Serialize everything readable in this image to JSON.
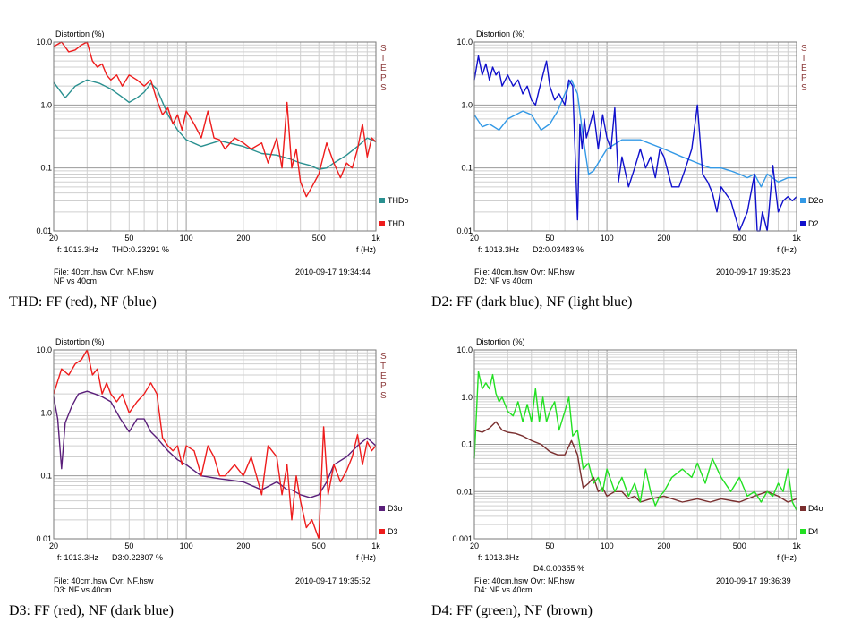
{
  "panels": [
    {
      "ylabel": "Distortion (%)",
      "xlabel": "f (Hz)",
      "steps_label": [
        "S",
        "T",
        "E",
        "P",
        "S"
      ],
      "yticks": [
        "10.0",
        "1.0",
        "0.1",
        "0.01"
      ],
      "xticks": [
        "20",
        "50",
        "100",
        "200",
        "500",
        "1k"
      ],
      "cursor_freq": "f: 1013.3Hz",
      "cursor_value": "THD:0.23291  %",
      "file_line": "File: 40cm.hsw   Ovr: NF.hsw",
      "sub_line": "NF vs 40cm",
      "date_line": "2010-09-17 19:34:44",
      "caption": "THD: FF (red), NF (blue)"
    },
    {
      "ylabel": "Distortion (%)",
      "xlabel": "f (Hz)",
      "steps_label": [
        "S",
        "T",
        "E",
        "P",
        "S"
      ],
      "yticks": [
        "10.0",
        "1.0",
        "0.1",
        "0.01"
      ],
      "xticks": [
        "20",
        "50",
        "100",
        "200",
        "500",
        "1k"
      ],
      "cursor_freq": "f: 1013.3Hz",
      "cursor_value": "D2:0.03483  %",
      "file_line": "File: 40cm.hsw   Ovr: NF.hsw",
      "sub_line": "D2: NF vs 40cm",
      "date_line": "2010-09-17 19:35:23",
      "caption": "D2: FF (dark blue), NF (light blue)"
    },
    {
      "ylabel": "Distortion (%)",
      "xlabel": "f (Hz)",
      "steps_label": [
        "S",
        "T",
        "E",
        "P",
        "S"
      ],
      "yticks": [
        "10.0",
        "1.0",
        "0.1",
        "0.01"
      ],
      "xticks": [
        "20",
        "50",
        "100",
        "200",
        "500",
        "1k"
      ],
      "cursor_freq": "f: 1013.3Hz",
      "cursor_value": "D3:0.22807 %",
      "file_line": "File: 40cm.hsw   Ovr: NF.hsw",
      "sub_line": "D3: NF vs 40cm",
      "date_line": "2010-09-17 19:35:52",
      "caption": "D3: FF (red), NF (dark blue)"
    },
    {
      "ylabel": "Distortion (%)",
      "xlabel": "f (Hz)",
      "steps_label": [],
      "yticks": [
        "10.0",
        "1.0",
        "0.1",
        "0.01",
        "0.001"
      ],
      "xticks": [
        "20",
        "50",
        "100",
        "200",
        "500",
        "1k"
      ],
      "cursor_freq": "f: 1013.3Hz",
      "cursor_value": "D4:0.00355   %",
      "file_line": "File: 40cm.hsw   Ovr: NF.hsw",
      "sub_line": "D4: NF vs 40cm",
      "date_line": "2010-09-17 19:36:39",
      "caption": "D4: FF (green), NF (brown)"
    }
  ],
  "chart_data": [
    {
      "type": "line",
      "ylabel": "Distortion (%)",
      "xlabel": "f (Hz)",
      "xscale": "log",
      "yscale": "log",
      "xlim": [
        20,
        1000
      ],
      "ylim": [
        0.01,
        10
      ],
      "legend": "bottom-right",
      "series": [
        {
          "name": "THDo",
          "color": "#2a9090",
          "x": [
            20,
            23,
            26,
            30,
            35,
            40,
            45,
            50,
            55,
            60,
            65,
            70,
            80,
            90,
            100,
            120,
            150,
            200,
            250,
            300,
            350,
            400,
            450,
            500,
            550,
            600,
            700,
            800,
            900,
            1000
          ],
          "y": [
            2.3,
            1.3,
            2.0,
            2.5,
            2.2,
            1.8,
            1.4,
            1.1,
            1.3,
            1.6,
            2.2,
            1.8,
            0.7,
            0.4,
            0.28,
            0.22,
            0.27,
            0.22,
            0.17,
            0.16,
            0.14,
            0.12,
            0.11,
            0.095,
            0.1,
            0.12,
            0.16,
            0.22,
            0.3,
            0.26
          ]
        },
        {
          "name": "THD",
          "color": "#ee1c1c",
          "x": [
            20,
            22,
            24,
            26,
            28,
            30,
            32,
            34,
            36,
            38,
            40,
            43,
            46,
            50,
            55,
            60,
            65,
            70,
            75,
            80,
            85,
            90,
            95,
            100,
            110,
            120,
            130,
            140,
            150,
            160,
            180,
            200,
            220,
            250,
            270,
            300,
            320,
            340,
            360,
            380,
            400,
            430,
            460,
            500,
            550,
            600,
            650,
            700,
            750,
            800,
            850,
            900,
            950,
            1000
          ],
          "y": [
            8.5,
            10,
            7,
            7.5,
            9,
            10,
            5,
            4,
            4.5,
            3,
            2.5,
            3,
            2,
            3,
            2.5,
            2,
            2.5,
            1.2,
            0.7,
            0.9,
            0.5,
            0.7,
            0.4,
            0.8,
            0.5,
            0.3,
            0.8,
            0.3,
            0.28,
            0.2,
            0.3,
            0.25,
            0.2,
            0.25,
            0.12,
            0.3,
            0.1,
            1.1,
            0.1,
            0.2,
            0.06,
            0.035,
            0.05,
            0.08,
            0.25,
            0.12,
            0.07,
            0.12,
            0.1,
            0.2,
            0.5,
            0.15,
            0.3,
            0.26
          ]
        }
      ]
    },
    {
      "type": "line",
      "ylabel": "Distortion (%)",
      "xlabel": "f (Hz)",
      "xscale": "log",
      "yscale": "log",
      "xlim": [
        20,
        1000
      ],
      "ylim": [
        0.01,
        10
      ],
      "legend": "bottom-right",
      "series": [
        {
          "name": "D2o",
          "color": "#3399e6",
          "x": [
            20,
            22,
            24,
            27,
            30,
            33,
            36,
            40,
            45,
            50,
            55,
            60,
            65,
            70,
            75,
            80,
            85,
            90,
            100,
            120,
            150,
            200,
            250,
            300,
            350,
            400,
            450,
            500,
            550,
            600,
            650,
            700,
            800,
            900,
            1000
          ],
          "y": [
            0.7,
            0.45,
            0.5,
            0.4,
            0.6,
            0.7,
            0.8,
            0.7,
            0.4,
            0.5,
            0.8,
            1.5,
            2.5,
            1.5,
            0.3,
            0.08,
            0.09,
            0.12,
            0.2,
            0.28,
            0.28,
            0.2,
            0.15,
            0.12,
            0.1,
            0.1,
            0.09,
            0.08,
            0.07,
            0.08,
            0.05,
            0.08,
            0.06,
            0.07,
            0.07
          ]
        },
        {
          "name": "D2",
          "color": "#1010cc",
          "x": [
            20,
            21,
            22,
            23,
            24,
            25,
            26,
            27,
            28,
            30,
            32,
            34,
            36,
            38,
            40,
            42,
            44,
            46,
            48,
            50,
            53,
            56,
            60,
            63,
            66,
            70,
            72,
            74,
            76,
            78,
            80,
            85,
            90,
            95,
            100,
            105,
            110,
            115,
            120,
            130,
            140,
            150,
            160,
            170,
            180,
            190,
            200,
            220,
            240,
            260,
            280,
            300,
            320,
            340,
            360,
            380,
            400,
            450,
            500,
            550,
            600,
            620,
            640,
            660,
            700,
            750,
            800,
            850,
            900,
            950,
            1000
          ],
          "y": [
            2.5,
            6,
            3,
            4.5,
            2.5,
            4,
            3,
            3.5,
            2,
            3,
            2,
            2.5,
            1.5,
            2,
            1.2,
            1,
            1.8,
            3,
            5,
            2,
            1.2,
            1.5,
            1,
            2.5,
            2,
            0.015,
            0.5,
            0.2,
            0.6,
            0.3,
            0.4,
            0.8,
            0.2,
            0.7,
            0.3,
            0.2,
            0.9,
            0.06,
            0.15,
            0.05,
            0.1,
            0.2,
            0.1,
            0.15,
            0.07,
            0.2,
            0.15,
            0.05,
            0.05,
            0.1,
            0.2,
            1,
            0.08,
            0.06,
            0.04,
            0.02,
            0.05,
            0.03,
            0.01,
            0.02,
            0.08,
            0.01,
            0.005,
            0.02,
            0.01,
            0.11,
            0.02,
            0.03,
            0.035,
            0.03,
            0.035
          ]
        }
      ]
    },
    {
      "type": "line",
      "ylabel": "Distortion (%)",
      "xlabel": "f (Hz)",
      "xscale": "log",
      "yscale": "log",
      "xlim": [
        20,
        1000
      ],
      "ylim": [
        0.01,
        10
      ],
      "legend": "bottom-right",
      "series": [
        {
          "name": "D3o",
          "color": "#5a1f7a",
          "x": [
            20,
            21,
            22,
            23,
            25,
            27,
            30,
            33,
            36,
            40,
            45,
            50,
            55,
            60,
            65,
            70,
            80,
            90,
            100,
            120,
            150,
            200,
            250,
            300,
            320,
            340,
            360,
            400,
            450,
            500,
            550,
            600,
            700,
            800,
            900,
            1000
          ],
          "y": [
            1.8,
            0.8,
            0.13,
            0.7,
            1.3,
            2.0,
            2.2,
            2.0,
            1.8,
            1.5,
            0.8,
            0.5,
            0.8,
            0.8,
            0.5,
            0.4,
            0.25,
            0.18,
            0.15,
            0.1,
            0.09,
            0.08,
            0.06,
            0.08,
            0.07,
            0.06,
            0.06,
            0.05,
            0.045,
            0.05,
            0.08,
            0.15,
            0.2,
            0.3,
            0.4,
            0.3
          ]
        },
        {
          "name": "D3",
          "color": "#ee1c1c",
          "x": [
            20,
            22,
            24,
            26,
            28,
            30,
            32,
            34,
            36,
            38,
            40,
            43,
            46,
            50,
            55,
            60,
            65,
            70,
            75,
            80,
            85,
            90,
            95,
            100,
            110,
            120,
            130,
            140,
            150,
            160,
            180,
            200,
            220,
            250,
            270,
            300,
            320,
            340,
            360,
            380,
            400,
            430,
            460,
            500,
            530,
            560,
            600,
            650,
            700,
            750,
            800,
            850,
            900,
            950,
            1000
          ],
          "y": [
            2,
            5,
            4,
            6,
            7,
            10,
            4,
            5,
            2,
            3,
            2,
            1.5,
            2,
            1,
            1.5,
            2,
            3,
            2,
            0.4,
            0.3,
            0.25,
            0.3,
            0.15,
            0.3,
            0.25,
            0.1,
            0.3,
            0.2,
            0.1,
            0.1,
            0.15,
            0.1,
            0.2,
            0.05,
            0.3,
            0.2,
            0.05,
            0.15,
            0.02,
            0.1,
            0.04,
            0.015,
            0.02,
            0.01,
            0.6,
            0.05,
            0.15,
            0.08,
            0.12,
            0.2,
            0.45,
            0.15,
            0.35,
            0.25,
            0.3
          ]
        }
      ]
    },
    {
      "type": "line",
      "ylabel": "Distortion (%)",
      "xlabel": "f (Hz)",
      "xscale": "log",
      "yscale": "log",
      "xlim": [
        20,
        1000
      ],
      "ylim": [
        0.001,
        10
      ],
      "legend": "bottom-right",
      "series": [
        {
          "name": "D4o",
          "color": "#7a2f2f",
          "x": [
            20,
            22,
            24,
            26,
            28,
            30,
            33,
            36,
            40,
            45,
            50,
            55,
            60,
            65,
            70,
            72,
            75,
            80,
            85,
            90,
            95,
            100,
            110,
            120,
            130,
            140,
            150,
            170,
            200,
            250,
            300,
            350,
            400,
            500,
            600,
            700,
            800,
            900,
            1000
          ],
          "y": [
            0.2,
            0.18,
            0.22,
            0.3,
            0.2,
            0.18,
            0.17,
            0.15,
            0.12,
            0.1,
            0.07,
            0.06,
            0.06,
            0.12,
            0.06,
            0.03,
            0.012,
            0.015,
            0.02,
            0.01,
            0.012,
            0.008,
            0.01,
            0.01,
            0.007,
            0.008,
            0.006,
            0.007,
            0.008,
            0.006,
            0.007,
            0.006,
            0.007,
            0.006,
            0.008,
            0.01,
            0.008,
            0.006,
            0.007
          ]
        },
        {
          "name": "D4",
          "color": "#22e022",
          "x": [
            20,
            21,
            22,
            23,
            24,
            25,
            26,
            27,
            28,
            30,
            32,
            34,
            36,
            38,
            40,
            42,
            44,
            46,
            48,
            50,
            53,
            56,
            60,
            63,
            66,
            70,
            75,
            80,
            85,
            90,
            95,
            100,
            110,
            120,
            130,
            140,
            150,
            160,
            170,
            180,
            190,
            200,
            220,
            250,
            280,
            300,
            330,
            360,
            400,
            450,
            500,
            550,
            600,
            650,
            700,
            750,
            800,
            850,
            900,
            950,
            1000
          ],
          "y": [
            0.05,
            3.5,
            1.5,
            2,
            1.5,
            3,
            1.2,
            0.8,
            1,
            0.5,
            0.4,
            0.8,
            0.3,
            0.7,
            0.3,
            1.5,
            0.3,
            1,
            0.3,
            0.5,
            0.8,
            0.2,
            0.5,
            1,
            0.15,
            0.2,
            0.03,
            0.04,
            0.015,
            0.02,
            0.01,
            0.03,
            0.01,
            0.02,
            0.008,
            0.015,
            0.006,
            0.03,
            0.01,
            0.005,
            0.008,
            0.01,
            0.02,
            0.03,
            0.02,
            0.04,
            0.015,
            0.05,
            0.02,
            0.01,
            0.02,
            0.008,
            0.01,
            0.006,
            0.01,
            0.008,
            0.015,
            0.01,
            0.03,
            0.006,
            0.004
          ]
        }
      ]
    }
  ]
}
